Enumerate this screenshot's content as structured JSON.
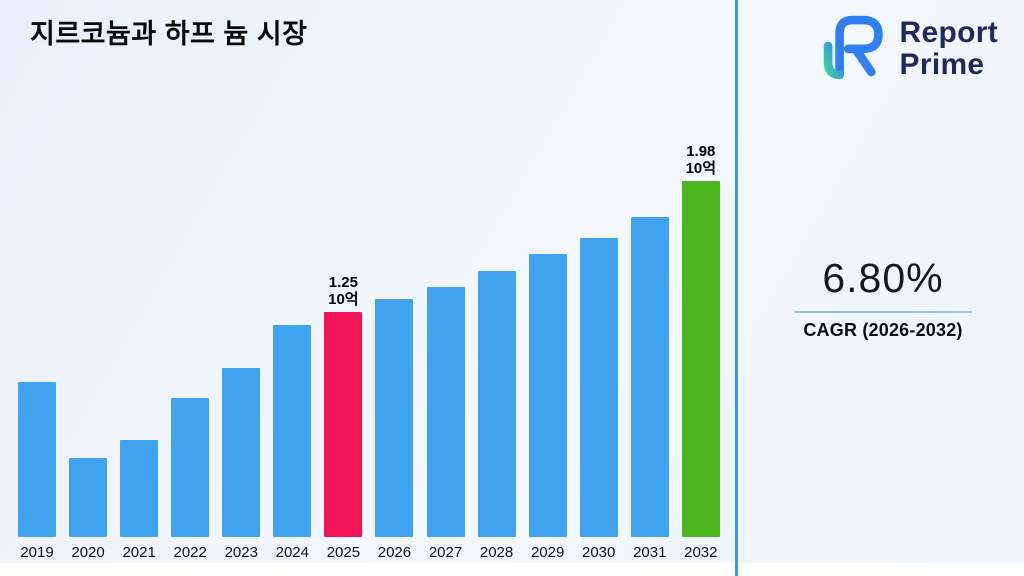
{
  "title": "지르코늄과 하프 늄 시장",
  "logo": {
    "line1": "Report",
    "line2": "Prime"
  },
  "cagr": {
    "value": "6.80%",
    "label": "CAGR (2026-2032)"
  },
  "colors": {
    "bar_default": "#3fa3ef",
    "bar_highlight_2025": "#f01355",
    "bar_highlight_2032": "#4cb71c",
    "divider": "#2d9fe8",
    "logo_navy": "#1c2a5e"
  },
  "chart_data": {
    "type": "bar",
    "title": "지르코늄과 하프 늄 시장",
    "xlabel": "",
    "ylabel": "",
    "unit_label": "10억",
    "categories": [
      "2019",
      "2020",
      "2021",
      "2022",
      "2023",
      "2024",
      "2025",
      "2026",
      "2027",
      "2028",
      "2029",
      "2030",
      "2031",
      "2032"
    ],
    "values": [
      0.86,
      0.44,
      0.54,
      0.77,
      0.94,
      1.18,
      1.25,
      1.32,
      1.39,
      1.48,
      1.57,
      1.66,
      1.78,
      1.98
    ],
    "ylim": [
      0,
      2.2
    ],
    "grid": false,
    "legend": false,
    "bar_color": "#3fa3ef",
    "highlight_bars": [
      {
        "category": "2025",
        "color": "#f01355",
        "value_label": "1.25",
        "unit_label": "10억"
      },
      {
        "category": "2032",
        "color": "#4cb71c",
        "value_label": "1.98",
        "unit_label": "10억"
      }
    ]
  }
}
